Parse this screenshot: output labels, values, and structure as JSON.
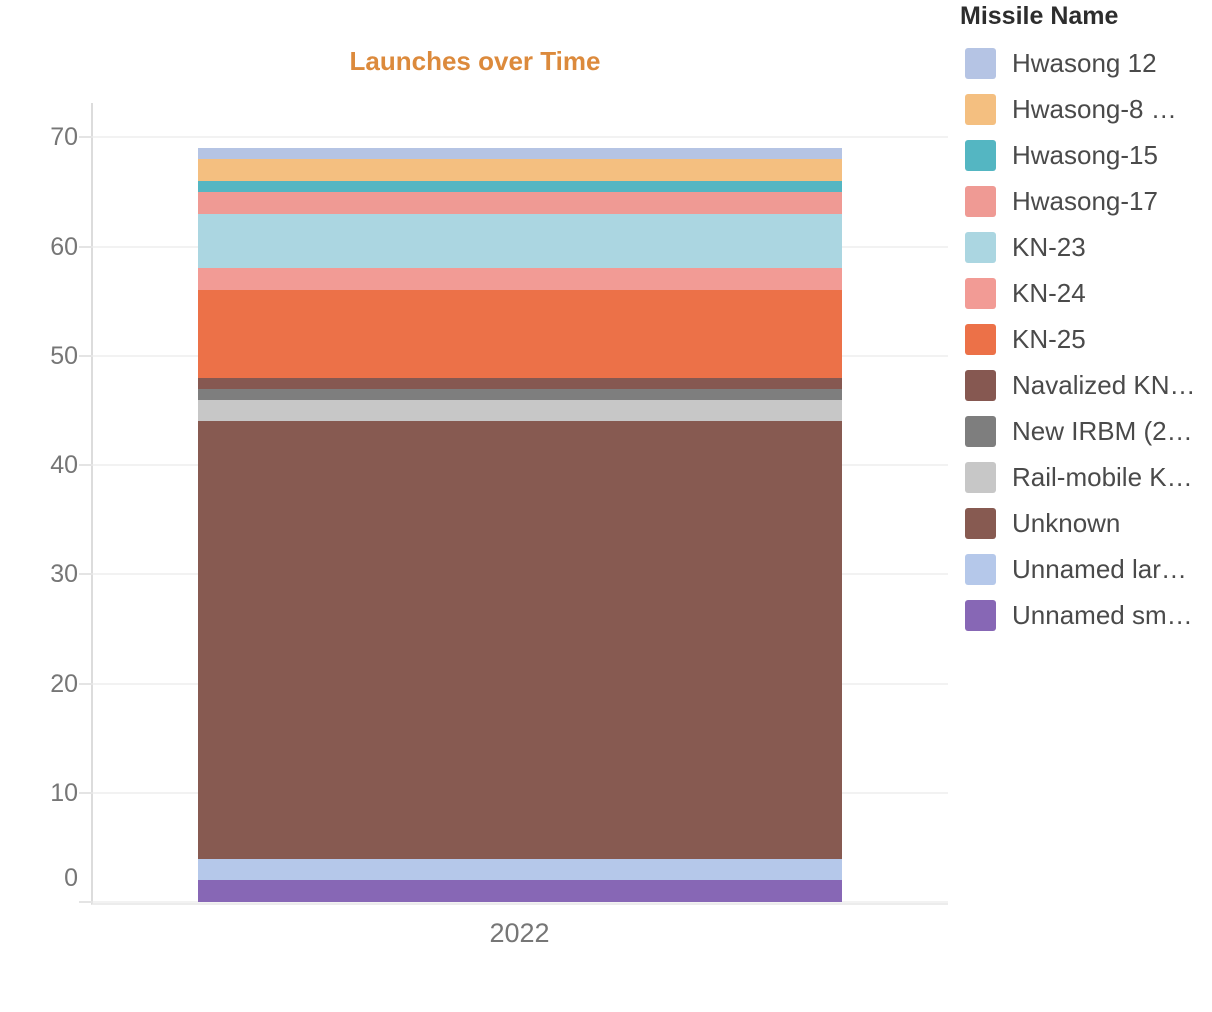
{
  "title": "Launches over Time",
  "x_axis": {
    "label": "2022"
  },
  "legend": {
    "title": "Missile Name"
  },
  "chart_data": {
    "type": "bar",
    "stacked": true,
    "title": "Launches over Time",
    "title_color": "#dc8a3c",
    "legend_title": "Missile Name",
    "legend_position": "right",
    "categories": [
      "2022"
    ],
    "xlabel": "",
    "ylabel": "",
    "ylim": [
      0,
      70
    ],
    "y_ticks": [
      0,
      10,
      20,
      30,
      40,
      50,
      60,
      70
    ],
    "grid": true,
    "total_launches": 69,
    "series": [
      {
        "name": "Hwasong 12",
        "values": [
          1
        ],
        "color": "#b5c4e4"
      },
      {
        "name": "Hwasong-8 …",
        "values": [
          2
        ],
        "color": "#f4bf80"
      },
      {
        "name": "Hwasong-15",
        "values": [
          1
        ],
        "color": "#54b6c2"
      },
      {
        "name": "Hwasong-17",
        "values": [
          2
        ],
        "color": "#ef9a94"
      },
      {
        "name": "KN-23",
        "values": [
          5
        ],
        "color": "#abd6e1"
      },
      {
        "name": "KN-24",
        "values": [
          2
        ],
        "color": "#f29b95"
      },
      {
        "name": "KN-25",
        "values": [
          8
        ],
        "color": "#ec7148"
      },
      {
        "name": "Navalized KN…",
        "values": [
          1
        ],
        "color": "#865851"
      },
      {
        "name": "New IRBM (2…",
        "values": [
          1
        ],
        "color": "#7e7e7e"
      },
      {
        "name": "Rail-mobile K…",
        "values": [
          2
        ],
        "color": "#c7c7c7"
      },
      {
        "name": "Unknown",
        "values": [
          40
        ],
        "color": "#875a51"
      },
      {
        "name": "Unnamed lar…",
        "values": [
          2
        ],
        "color": "#b5c8ea"
      },
      {
        "name": "Unnamed sm…",
        "values": [
          2
        ],
        "color": "#8767b5"
      }
    ]
  }
}
